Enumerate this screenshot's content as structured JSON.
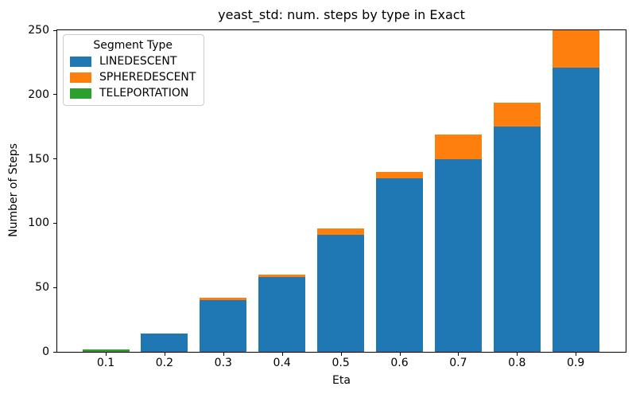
{
  "chart_data": {
    "type": "bar",
    "stacked": true,
    "title": "yeast_std: num. steps by type in Exact",
    "xlabel": "Eta",
    "ylabel": "Number of Steps",
    "categories": [
      "0.1",
      "0.2",
      "0.3",
      "0.4",
      "0.5",
      "0.6",
      "0.7",
      "0.8",
      "0.9"
    ],
    "series": [
      {
        "name": "LINEDESCENT",
        "color": "#1f77b4",
        "values": [
          0,
          14,
          40,
          58,
          91,
          135,
          150,
          175,
          221
        ]
      },
      {
        "name": "SPHEREDESCENT",
        "color": "#ff7f0e",
        "values": [
          0,
          0,
          2,
          2,
          5,
          5,
          19,
          19,
          30
        ]
      },
      {
        "name": "TELEPORTATION",
        "color": "#2ca02c",
        "values": [
          2,
          0,
          0,
          0,
          0,
          0,
          0,
          0,
          0
        ]
      }
    ],
    "ylim": [
      0,
      250
    ],
    "yticks": [
      "0",
      "50",
      "100",
      "150",
      "200",
      "250"
    ],
    "legend_title": "Segment Type",
    "legend_position": "upper left",
    "grid": false,
    "axis_color": "#000000"
  }
}
